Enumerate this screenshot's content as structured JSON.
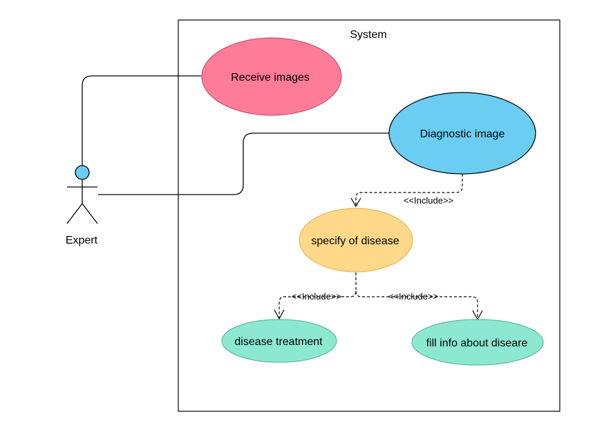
{
  "system": {
    "label": "System"
  },
  "actor": {
    "label": "Expert",
    "head_color": "#6ccdf2"
  },
  "use_cases": {
    "receive_images": {
      "label": "Receive images",
      "fill": "#fe7c97",
      "stroke": "#c2536f"
    },
    "diagnostic_image": {
      "label": "Diagnostic image",
      "fill": "#6ccdf2",
      "stroke": "#000000"
    },
    "specify_disease": {
      "label": "specify of disease",
      "fill": "#ffd88a",
      "stroke": "#e8b45a"
    },
    "disease_treatment": {
      "label": "disease treatment",
      "fill": "#8de8d2",
      "stroke": "#5cb89e"
    },
    "fill_info": {
      "label": "fill info about diseare",
      "fill": "#8de8d2",
      "stroke": "#5cb89e"
    }
  },
  "relations": {
    "include_1": "<<Include>>",
    "include_2": "<<Include>>",
    "include_3": "<<Include>>"
  }
}
